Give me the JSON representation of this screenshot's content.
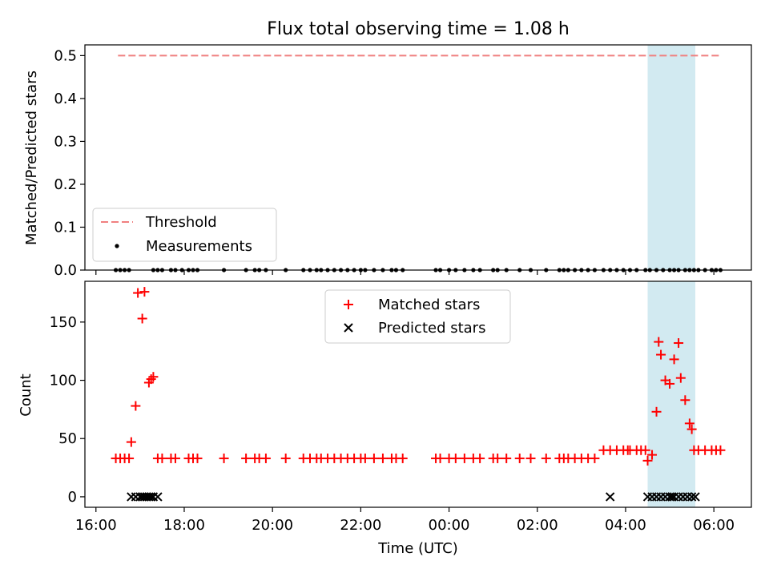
{
  "chart_data": [
    {
      "type": "scatter",
      "title": "Flux total observing time = 1.08 h",
      "ylabel": "Matched/Predicted stars",
      "xlabel": "",
      "xlim": [
        15.75,
        30.85
      ],
      "ylim": [
        0,
        0.525
      ],
      "yticks": [
        0.0,
        0.1,
        0.2,
        0.3,
        0.4,
        0.5
      ],
      "ytick_labels": [
        "0.0",
        "0.1",
        "0.2",
        "0.3",
        "0.4",
        "0.5"
      ],
      "threshold": {
        "name": "Threshold",
        "value": 0.5,
        "x_range": [
          16.5,
          30.15
        ],
        "color": "#f08080"
      },
      "highlight": {
        "x_range": [
          28.5,
          29.58
        ],
        "color": "#add8e6"
      },
      "series": [
        {
          "name": "Measurements",
          "marker": "dot",
          "color": "#000000",
          "x": [
            16.45,
            16.55,
            16.65,
            16.75,
            17.3,
            17.4,
            17.5,
            17.7,
            17.8,
            17.95,
            18.1,
            18.2,
            18.3,
            18.9,
            19.4,
            19.6,
            19.7,
            19.85,
            20.3,
            20.7,
            20.85,
            21.0,
            21.1,
            21.25,
            21.4,
            21.55,
            21.7,
            21.85,
            22.0,
            22.1,
            22.3,
            22.5,
            22.7,
            22.8,
            22.95,
            23.7,
            23.8,
            24.0,
            24.15,
            24.35,
            24.55,
            24.7,
            25.0,
            25.1,
            25.3,
            25.6,
            25.85,
            26.2,
            26.5,
            26.6,
            26.7,
            26.85,
            27.0,
            27.15,
            27.3,
            27.5,
            27.65,
            27.8,
            27.95,
            28.1,
            28.25,
            28.45,
            28.55,
            28.7,
            28.85,
            29.0,
            29.1,
            29.2,
            29.35,
            29.45,
            29.55,
            29.65,
            29.8,
            29.95,
            30.05,
            30.15
          ],
          "y": [
            0,
            0,
            0,
            0,
            0,
            0,
            0,
            0,
            0,
            0,
            0,
            0,
            0,
            0,
            0,
            0,
            0,
            0,
            0,
            0,
            0,
            0,
            0,
            0,
            0,
            0,
            0,
            0,
            0,
            0,
            0,
            0,
            0,
            0,
            0,
            0,
            0,
            0,
            0,
            0,
            0,
            0,
            0,
            0,
            0,
            0,
            0,
            0,
            0,
            0,
            0,
            0,
            0,
            0,
            0,
            0,
            0,
            0,
            0,
            0,
            0,
            0,
            0,
            0,
            0,
            0,
            0,
            0,
            0,
            0,
            0,
            0,
            0,
            0,
            0,
            0
          ]
        }
      ],
      "legend": {
        "entries": [
          "Threshold",
          "Measurements"
        ],
        "location": "lower-left"
      }
    },
    {
      "type": "scatter",
      "title": "",
      "ylabel": "Count",
      "xlabel": "Time (UTC)",
      "xlim": [
        15.75,
        30.85
      ],
      "ylim": [
        -9,
        185
      ],
      "yticks": [
        0,
        50,
        100,
        150
      ],
      "ytick_labels": [
        "0",
        "50",
        "100",
        "150"
      ],
      "xticks": [
        16,
        18,
        20,
        22,
        24,
        26,
        28,
        30
      ],
      "xtick_labels": [
        "16:00",
        "18:00",
        "20:00",
        "22:00",
        "00:00",
        "02:00",
        "04:00",
        "06:00"
      ],
      "highlight": {
        "x_range": [
          28.5,
          29.58
        ],
        "color": "#add8e6"
      },
      "series": [
        {
          "name": "Matched stars",
          "marker": "plus",
          "color": "#ff0000",
          "x": [
            16.45,
            16.55,
            16.65,
            16.75,
            16.8,
            16.9,
            16.95,
            17.05,
            17.1,
            17.2,
            17.25,
            17.3,
            17.4,
            17.5,
            17.7,
            17.8,
            18.1,
            18.2,
            18.3,
            18.9,
            19.4,
            19.6,
            19.7,
            19.85,
            20.3,
            20.7,
            20.85,
            21.0,
            21.1,
            21.25,
            21.4,
            21.55,
            21.7,
            21.85,
            22.0,
            22.1,
            22.3,
            22.5,
            22.7,
            22.8,
            22.95,
            23.7,
            23.8,
            24.0,
            24.15,
            24.35,
            24.55,
            24.7,
            25.0,
            25.1,
            25.3,
            25.6,
            25.85,
            26.2,
            26.5,
            26.6,
            26.7,
            26.85,
            27.0,
            27.15,
            27.3,
            27.5,
            27.65,
            27.8,
            27.95,
            28.05,
            28.1,
            28.25,
            28.35,
            28.45,
            28.5,
            28.6,
            28.7,
            28.75,
            28.8,
            28.9,
            29.0,
            29.1,
            29.2,
            29.25,
            29.35,
            29.45,
            29.5,
            29.55,
            29.65,
            29.8,
            29.95,
            30.05,
            30.15
          ],
          "y": [
            33,
            33,
            33,
            33,
            47,
            78,
            175,
            153,
            176,
            98,
            101,
            103,
            33,
            33,
            33,
            33,
            33,
            33,
            33,
            33,
            33,
            33,
            33,
            33,
            33,
            33,
            33,
            33,
            33,
            33,
            33,
            33,
            33,
            33,
            33,
            33,
            33,
            33,
            33,
            33,
            33,
            33,
            33,
            33,
            33,
            33,
            33,
            33,
            33,
            33,
            33,
            33,
            33,
            33,
            33,
            33,
            33,
            33,
            33,
            33,
            33,
            40,
            40,
            40,
            40,
            40,
            40,
            40,
            40,
            40,
            31,
            36,
            73,
            133,
            122,
            100,
            97,
            118,
            132,
            102,
            83,
            63,
            58,
            40,
            40,
            40,
            40,
            40,
            40
          ]
        },
        {
          "name": "Predicted stars",
          "marker": "x",
          "color": "#000000",
          "x": [
            16.8,
            16.9,
            17.0,
            17.05,
            17.1,
            17.15,
            17.2,
            17.25,
            17.3,
            17.4,
            27.65,
            28.5,
            28.6,
            28.7,
            28.8,
            28.9,
            29.0,
            29.05,
            29.1,
            29.2,
            29.3,
            29.4,
            29.5,
            29.58
          ],
          "y": [
            0,
            0,
            0,
            0,
            0,
            0,
            0,
            0,
            0,
            0,
            0,
            0,
            0,
            0,
            0,
            0,
            0,
            0,
            0,
            0,
            0,
            0,
            0,
            0
          ]
        }
      ],
      "legend": {
        "entries": [
          "Matched stars",
          "Predicted stars"
        ],
        "location": "upper-center"
      }
    }
  ]
}
